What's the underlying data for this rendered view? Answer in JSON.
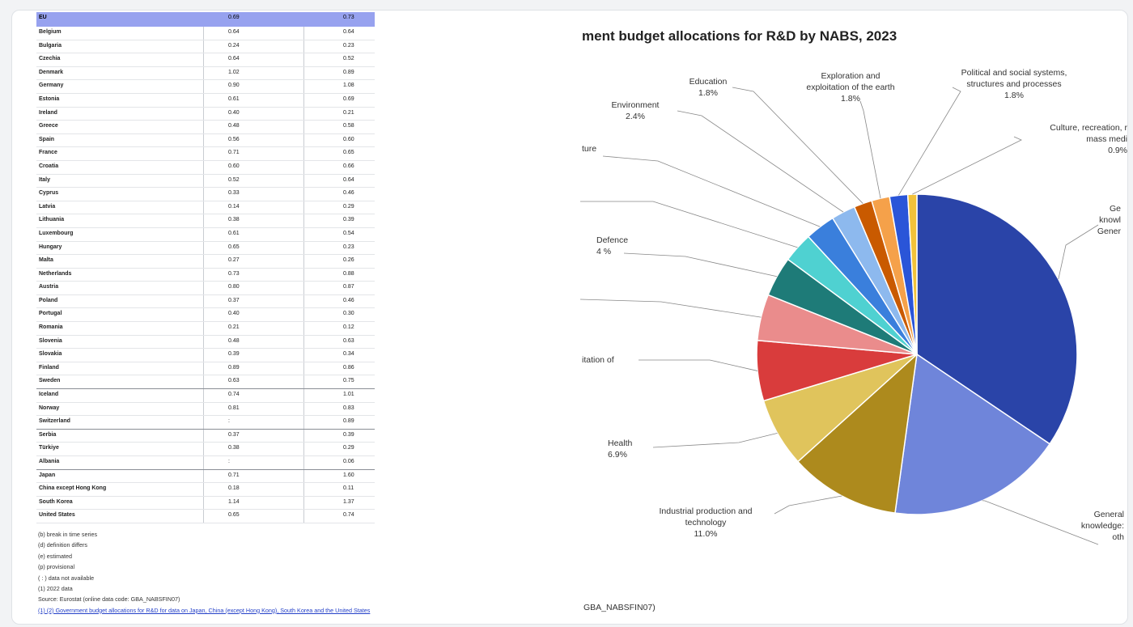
{
  "table": {
    "header": {
      "country": "EU",
      "v2022": "0.69",
      "v2023": "0.73"
    },
    "rows": [
      {
        "country": "Belgium",
        "v2022": "0.64",
        "v2023": "0.64"
      },
      {
        "country": "Bulgaria",
        "v2022": "0.24",
        "v2023": "0.23"
      },
      {
        "country": "Czechia",
        "v2022": "0.64",
        "v2023": "0.52"
      },
      {
        "country": "Denmark",
        "v2022": "1.02",
        "v2023": "0.89"
      },
      {
        "country": "Germany",
        "v2022": "0.90",
        "v2023": "1.08"
      },
      {
        "country": "Estonia",
        "v2022": "0.61",
        "v2023": "0.69"
      },
      {
        "country": "Ireland",
        "v2022": "0.40",
        "v2023": "0.21"
      },
      {
        "country": "Greece",
        "v2022": "0.48",
        "v2023": "0.58"
      },
      {
        "country": "Spain",
        "v2022": "0.56",
        "v2023": "0.60"
      },
      {
        "country": "France",
        "v2022": "0.71",
        "v2023": "0.65"
      },
      {
        "country": "Croatia",
        "v2022": "0.60",
        "v2023": "0.66"
      },
      {
        "country": "Italy",
        "v2022": "0.52",
        "v2023": "0.64"
      },
      {
        "country": "Cyprus",
        "v2022": "0.33",
        "v2023": "0.46"
      },
      {
        "country": "Latvia",
        "v2022": "0.14",
        "v2023": "0.29"
      },
      {
        "country": "Lithuania",
        "v2022": "0.38",
        "v2023": "0.39"
      },
      {
        "country": "Luxembourg",
        "v2022": "0.61",
        "v2023": "0.54"
      },
      {
        "country": "Hungary",
        "v2022": "0.65",
        "v2023": "0.23"
      },
      {
        "country": "Malta",
        "v2022": "0.27",
        "v2023": "0.26"
      },
      {
        "country": "Netherlands",
        "v2022": "0.73",
        "v2023": "0.88"
      },
      {
        "country": "Austria",
        "v2022": "0.80",
        "v2023": "0.87"
      },
      {
        "country": "Poland",
        "v2022": "0.37",
        "v2023": "0.46"
      },
      {
        "country": "Portugal",
        "v2022": "0.40",
        "v2023": "0.30"
      },
      {
        "country": "Romania",
        "v2022": "0.21",
        "v2023": "0.12"
      },
      {
        "country": "Slovenia",
        "v2022": "0.48",
        "v2023": "0.63"
      },
      {
        "country": "Slovakia",
        "v2022": "0.39",
        "v2023": "0.34"
      },
      {
        "country": "Finland",
        "v2022": "0.89",
        "v2023": "0.86"
      },
      {
        "country": "Sweden",
        "v2022": "0.63",
        "v2023": "0.75"
      },
      {
        "country": "Iceland",
        "v2022": "0.74",
        "v2023": "1.01"
      },
      {
        "country": "Norway",
        "v2022": "0.81",
        "v2023": "0.83"
      },
      {
        "country": "Switzerland",
        "v2022": ":",
        "v2023": "0.89"
      },
      {
        "country": "Serbia",
        "v2022": "0.37",
        "v2023": "0.39"
      },
      {
        "country": "Türkiye",
        "v2022": "0.38",
        "v2023": "0.29"
      },
      {
        "country": "Albania",
        "v2022": ":",
        "v2023": "0.06"
      },
      {
        "country": "Japan",
        "v2022": "0.71",
        "v2023": "1.60"
      },
      {
        "country": "China except Hong Kong",
        "v2022": "0.18",
        "v2023": "0.11"
      },
      {
        "country": "South Korea",
        "v2022": "1.14",
        "v2023": "1.37"
      },
      {
        "country": "United States",
        "v2022": "0.65",
        "v2023": "0.74"
      }
    ]
  },
  "notes": {
    "lines": [
      "(b) break in time series",
      "(d) definition differs",
      "(e) estimated",
      "(p) provisional",
      "( : ) data not available",
      "(1) 2022 data"
    ],
    "source": "Source: Eurostat (online data code: GBA_NABSFIN07)",
    "link": "(1) (2) Government budget allocations for R&D for data on Japan, China (except Hong Kong), South Korea and the United States"
  },
  "chart_data": {
    "type": "pie",
    "title": "ment budget allocations for R&D by NABS, 2023",
    "source": "GBA_NABSFIN07)",
    "slices": [
      {
        "label": "Ge knowl Gener",
        "value": 34.0,
        "color": "#2a44a8"
      },
      {
        "label": "General knowledge: oth",
        "value": 17.5,
        "color": "#6f85da"
      },
      {
        "label": "Industrial production and technology 11.0%",
        "value": 11.0,
        "color": "#ad8a1d"
      },
      {
        "label": "Health 6.9%",
        "value": 6.9,
        "color": "#e0c45c"
      },
      {
        "label": "itation of",
        "value": 6.0,
        "color": "#d93c3c"
      },
      {
        "label": "",
        "value": 4.6,
        "color": "#ea8c8c"
      },
      {
        "label": "Defence 4 %",
        "value": 4.0,
        "color": "#1e7b78"
      },
      {
        "label": "",
        "value": 3.0,
        "color": "#4fd1d1"
      },
      {
        "label": "ture",
        "value": 3.0,
        "color": "#3a7fdc"
      },
      {
        "label": "Environment 2.4%",
        "value": 2.4,
        "color": "#8db9ee"
      },
      {
        "label": "Education 1.8%",
        "value": 1.8,
        "color": "#c95a00"
      },
      {
        "label": "Exploration and exploitation of the earth 1.8%",
        "value": 1.8,
        "color": "#f5a14a"
      },
      {
        "label": "Political and social systems, structures and processes 1.8%",
        "value": 1.8,
        "color": "#2a55d8"
      },
      {
        "label": "Culture, recreation, r mass medi 0.9%",
        "value": 0.9,
        "color": "#f2c23a"
      }
    ]
  }
}
